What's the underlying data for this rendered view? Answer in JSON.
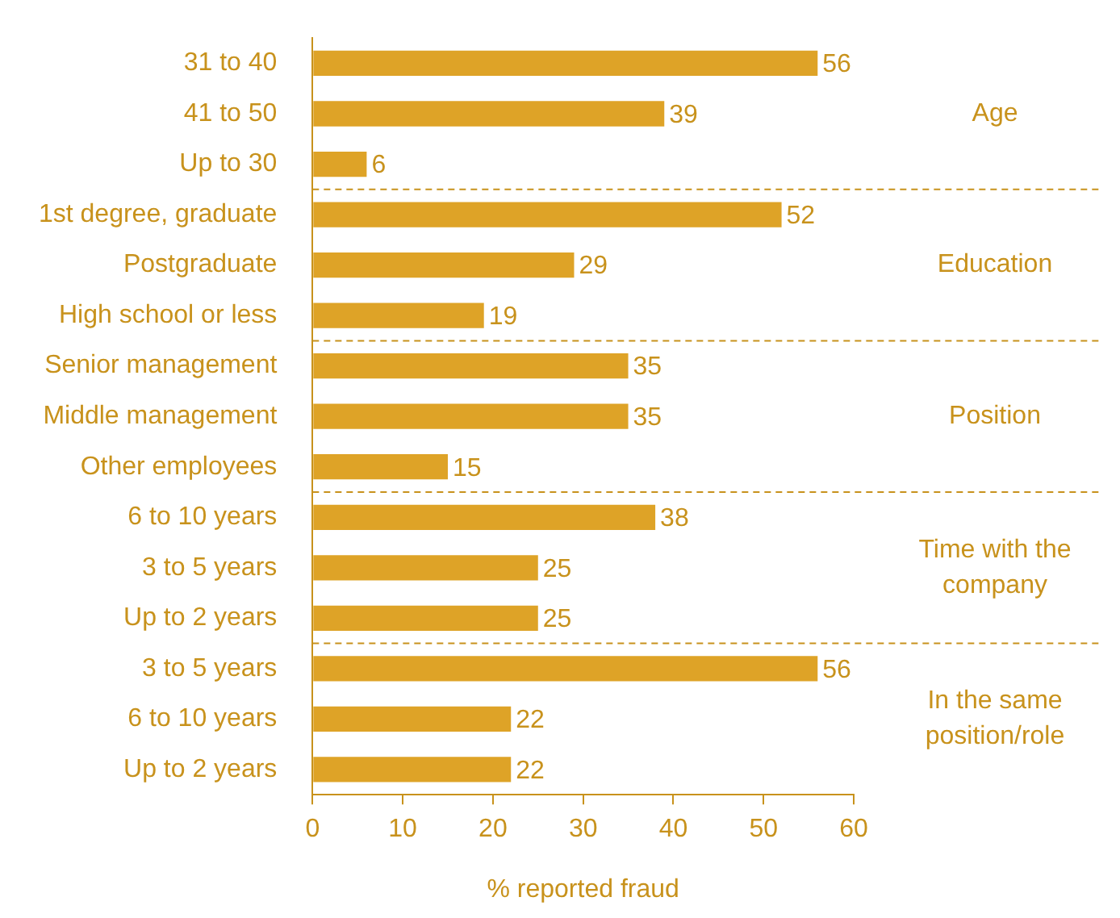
{
  "chart_data": {
    "type": "bar",
    "orientation": "horizontal",
    "xlabel": "% reported fraud",
    "categories": [
      "31 to 40",
      "41 to 50",
      "Up to 30",
      "1st degree, graduate",
      "Postgraduate",
      "High school or less",
      "Senior management",
      "Middle management",
      "Other employees",
      "6 to 10 years",
      "3 to 5 years",
      "Up to 2 years",
      "3 to 5 years",
      "6 to 10 years",
      "Up to 2 years"
    ],
    "values": [
      56,
      39,
      6,
      52,
      29,
      19,
      35,
      35,
      15,
      38,
      25,
      25,
      56,
      22,
      22
    ],
    "color": "#dea327",
    "xlim": [
      0,
      60
    ],
    "xticks": [
      0,
      10,
      20,
      30,
      40,
      50,
      60
    ],
    "data_labels": true,
    "grid": false,
    "legend": false,
    "annotations": [
      "Age",
      "Education",
      "Position",
      "Time with the company",
      "In the same position/role"
    ]
  }
}
